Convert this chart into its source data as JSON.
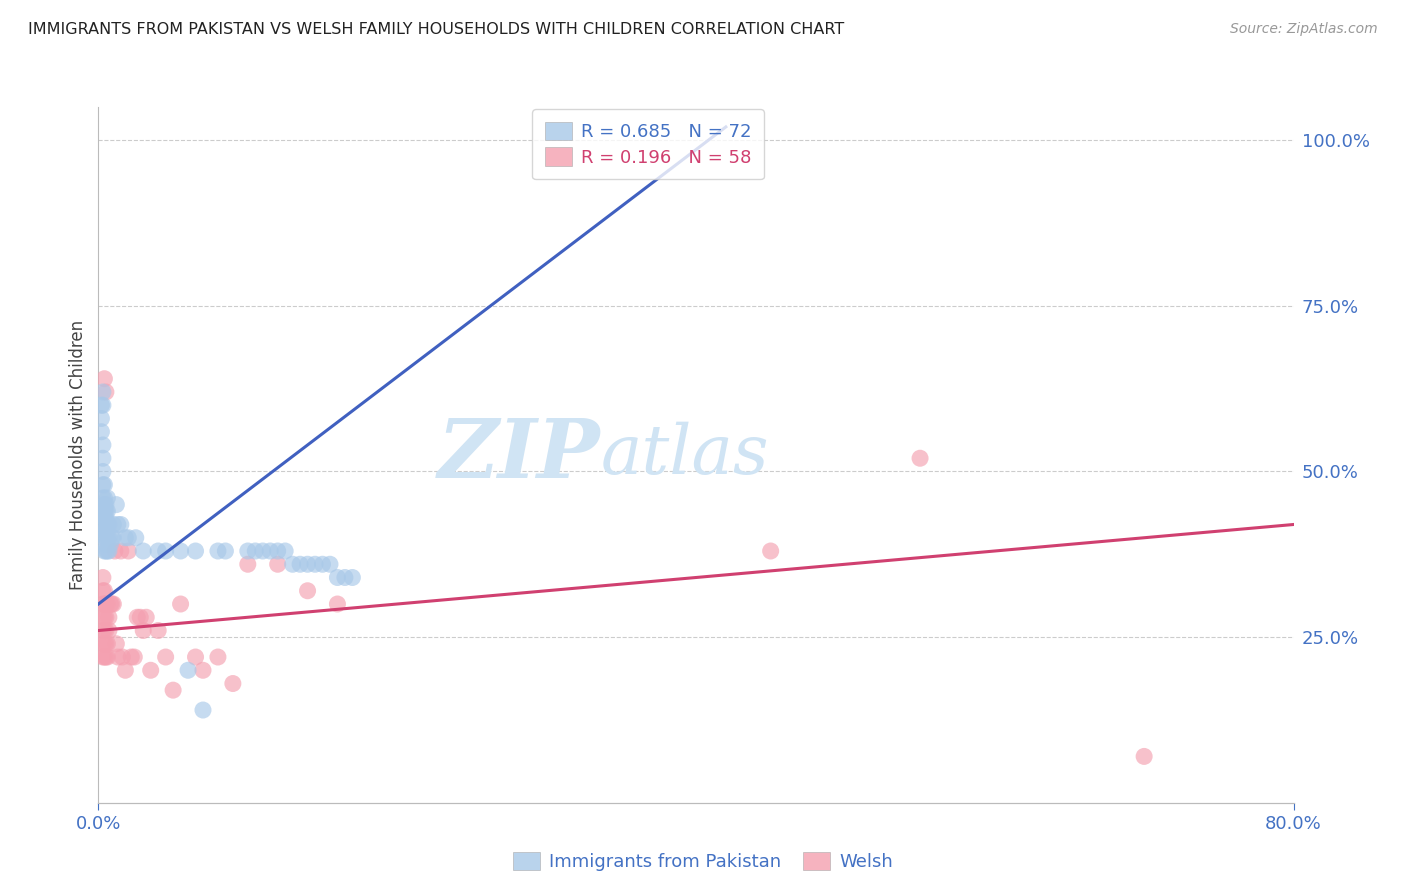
{
  "title": "IMMIGRANTS FROM PAKISTAN VS WELSH FAMILY HOUSEHOLDS WITH CHILDREN CORRELATION CHART",
  "source": "Source: ZipAtlas.com",
  "ylabel": "Family Households with Children",
  "xmin": 0.0,
  "xmax": 0.8,
  "ymin": 0.0,
  "ymax": 1.05,
  "yticks": [
    0.25,
    0.5,
    0.75,
    1.0
  ],
  "ytick_labels": [
    "25.0%",
    "50.0%",
    "75.0%",
    "100.0%"
  ],
  "xticks": [
    0.0,
    0.8
  ],
  "xtick_labels": [
    "0.0%",
    "80.0%"
  ],
  "blue_color": "#a8c8e8",
  "pink_color": "#f4a0b0",
  "blue_line_color": "#4060c0",
  "pink_line_color": "#d04070",
  "watermark_text": "ZIPatlas",
  "watermark_color": "#d0e4f4",
  "blue_scatter_x": [
    0.002,
    0.002,
    0.003,
    0.003,
    0.003,
    0.003,
    0.003,
    0.003,
    0.003,
    0.004,
    0.004,
    0.004,
    0.004,
    0.004,
    0.004,
    0.004,
    0.004,
    0.004,
    0.005,
    0.005,
    0.005,
    0.005,
    0.005,
    0.005,
    0.005,
    0.006,
    0.006,
    0.006,
    0.006,
    0.006,
    0.007,
    0.007,
    0.007,
    0.008,
    0.009,
    0.01,
    0.01,
    0.012,
    0.013,
    0.015,
    0.018,
    0.02,
    0.025,
    0.03,
    0.04,
    0.045,
    0.055,
    0.06,
    0.065,
    0.07,
    0.08,
    0.085,
    0.1,
    0.105,
    0.11,
    0.115,
    0.12,
    0.125,
    0.13,
    0.135,
    0.14,
    0.145,
    0.15,
    0.155,
    0.16,
    0.165,
    0.17,
    0.002,
    0.003,
    0.003
  ],
  "blue_scatter_y": [
    0.56,
    0.58,
    0.42,
    0.44,
    0.46,
    0.48,
    0.5,
    0.52,
    0.54,
    0.38,
    0.4,
    0.41,
    0.42,
    0.43,
    0.44,
    0.45,
    0.46,
    0.48,
    0.38,
    0.39,
    0.4,
    0.41,
    0.43,
    0.44,
    0.45,
    0.38,
    0.4,
    0.42,
    0.44,
    0.46,
    0.38,
    0.4,
    0.42,
    0.39,
    0.4,
    0.4,
    0.42,
    0.45,
    0.42,
    0.42,
    0.4,
    0.4,
    0.4,
    0.38,
    0.38,
    0.38,
    0.38,
    0.2,
    0.38,
    0.14,
    0.38,
    0.38,
    0.38,
    0.38,
    0.38,
    0.38,
    0.38,
    0.38,
    0.36,
    0.36,
    0.36,
    0.36,
    0.36,
    0.36,
    0.34,
    0.34,
    0.34,
    0.6,
    0.62,
    0.6
  ],
  "pink_scatter_x": [
    0.003,
    0.003,
    0.003,
    0.003,
    0.003,
    0.003,
    0.003,
    0.004,
    0.004,
    0.004,
    0.004,
    0.004,
    0.004,
    0.005,
    0.005,
    0.005,
    0.005,
    0.005,
    0.006,
    0.006,
    0.006,
    0.007,
    0.007,
    0.008,
    0.009,
    0.01,
    0.011,
    0.012,
    0.013,
    0.015,
    0.016,
    0.018,
    0.02,
    0.022,
    0.024,
    0.026,
    0.028,
    0.03,
    0.032,
    0.035,
    0.04,
    0.045,
    0.05,
    0.055,
    0.065,
    0.07,
    0.08,
    0.09,
    0.1,
    0.12,
    0.14,
    0.16,
    0.45,
    0.55,
    0.7,
    0.004,
    0.005
  ],
  "pink_scatter_y": [
    0.28,
    0.3,
    0.32,
    0.34,
    0.22,
    0.24,
    0.26,
    0.28,
    0.3,
    0.32,
    0.22,
    0.24,
    0.26,
    0.28,
    0.3,
    0.22,
    0.24,
    0.26,
    0.3,
    0.22,
    0.24,
    0.28,
    0.26,
    0.3,
    0.3,
    0.3,
    0.38,
    0.24,
    0.22,
    0.38,
    0.22,
    0.2,
    0.38,
    0.22,
    0.22,
    0.28,
    0.28,
    0.26,
    0.28,
    0.2,
    0.26,
    0.22,
    0.17,
    0.3,
    0.22,
    0.2,
    0.22,
    0.18,
    0.36,
    0.36,
    0.32,
    0.3,
    0.38,
    0.52,
    0.07,
    0.64,
    0.62
  ],
  "blue_line_x": [
    0.0,
    0.42
  ],
  "blue_line_y": [
    0.3,
    1.02
  ],
  "pink_line_x": [
    0.0,
    0.8
  ],
  "pink_line_y": [
    0.26,
    0.42
  ],
  "background_color": "#ffffff",
  "grid_color": "#cccccc",
  "title_color": "#222222",
  "axis_label_color": "#444444",
  "right_tick_color": "#4472c4",
  "bottom_tick_color": "#4472c4"
}
